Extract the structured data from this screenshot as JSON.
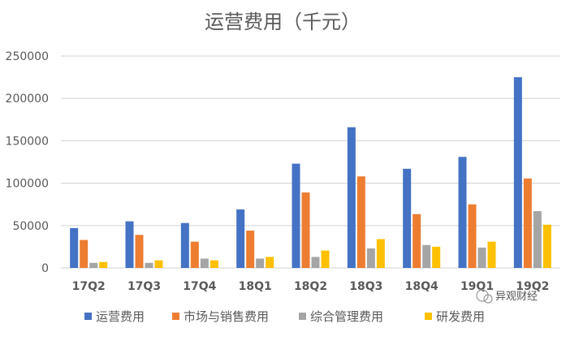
{
  "chart_data": {
    "type": "bar",
    "title": "运营费用（千元）",
    "xlabel": "",
    "ylabel": "",
    "ylim": [
      0,
      250000
    ],
    "yticks": [
      "0",
      "50000",
      "100000",
      "150000",
      "200000",
      "250000"
    ],
    "grid": true,
    "legend_position": "bottom",
    "categories": [
      "17Q2",
      "17Q3",
      "17Q4",
      "18Q1",
      "18Q2",
      "18Q3",
      "18Q4",
      "19Q1",
      "19Q2"
    ],
    "series": [
      {
        "name": "运营费用",
        "color": "#4472C4",
        "values": [
          47000,
          55000,
          53000,
          69000,
          123000,
          166000,
          117000,
          131000,
          225000
        ]
      },
      {
        "name": "市场与销售费用",
        "color": "#ED7D31",
        "values": [
          33000,
          39000,
          31000,
          44000,
          89000,
          108000,
          63500,
          75000,
          105500
        ]
      },
      {
        "name": "综合管理费用",
        "color": "#A5A5A5",
        "values": [
          6000,
          6000,
          11000,
          11000,
          13000,
          23000,
          27000,
          24000,
          67000
        ]
      },
      {
        "name": "研发费用",
        "color": "#FFC000",
        "values": [
          7000,
          9000,
          9000,
          13000,
          20500,
          34000,
          25000,
          31000,
          51000
        ]
      }
    ]
  },
  "watermark": "异观财经"
}
